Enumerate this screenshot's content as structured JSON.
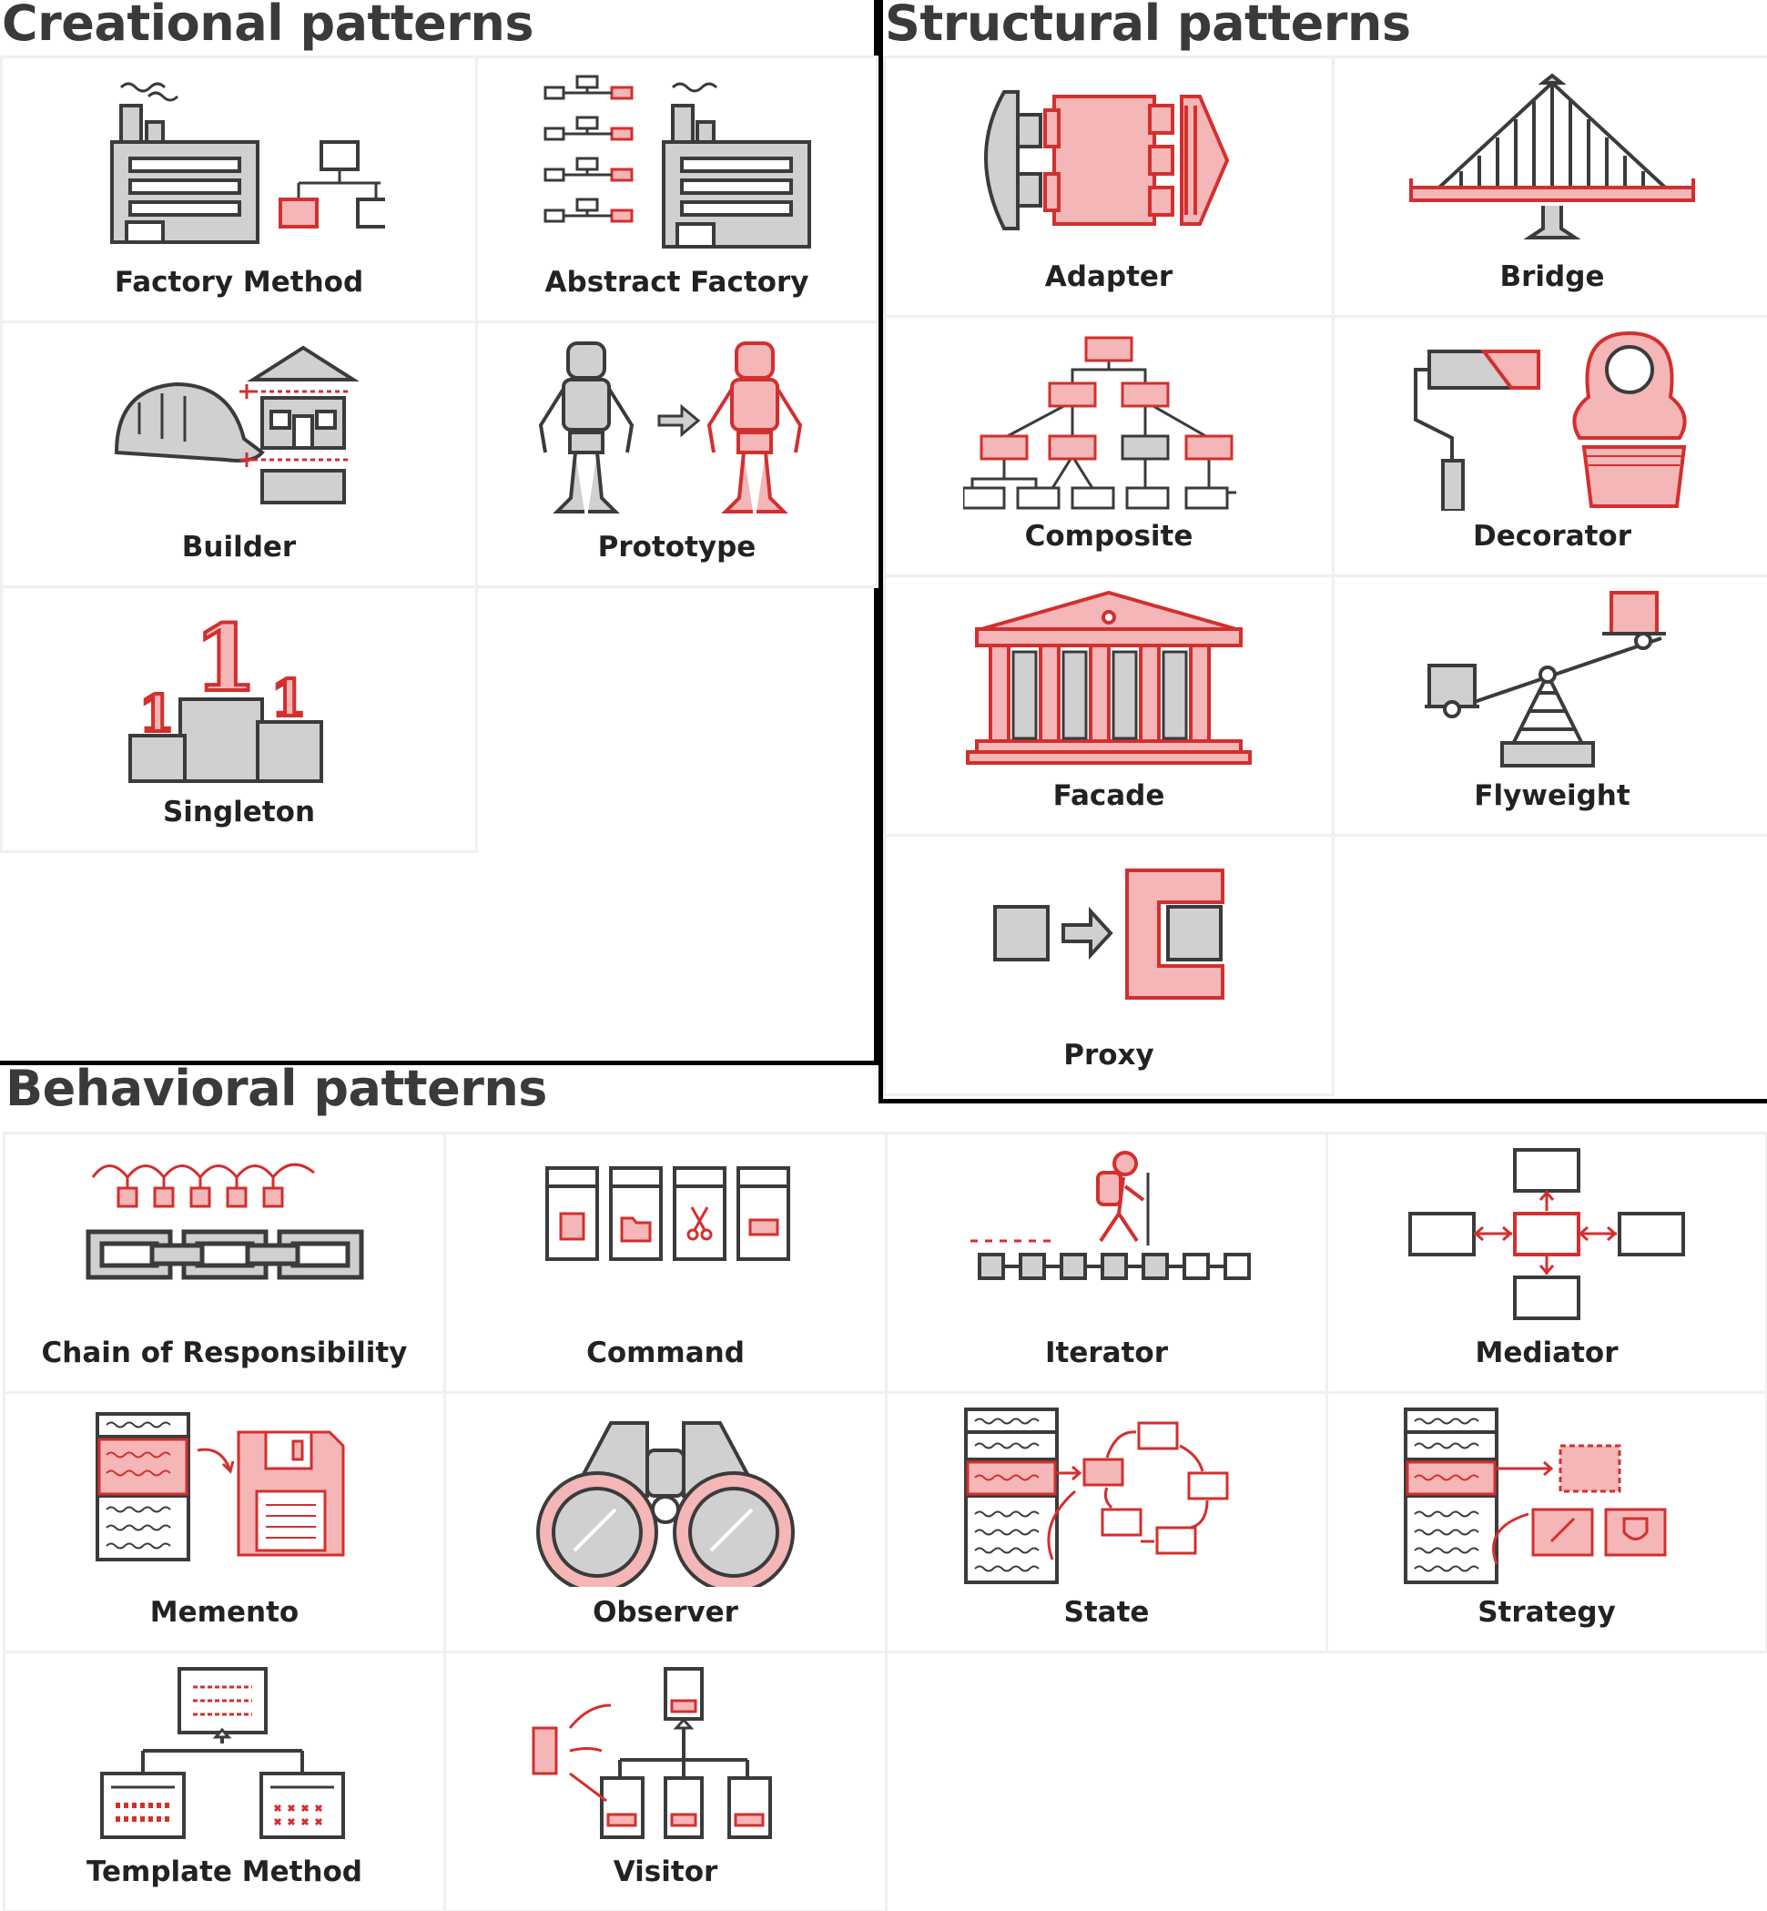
{
  "colors": {
    "accent": "#d32f2f",
    "accent_light": "#f4b6b6",
    "gray_fill": "#cfd0cf",
    "stroke": "#3b3b3b",
    "title": "#3a3a3a"
  },
  "sections": {
    "creational": {
      "title": "Creational patterns",
      "items": [
        {
          "label": "Factory Method",
          "icon": "factory-icon"
        },
        {
          "label": "Abstract Factory",
          "icon": "abstract-factory-icon"
        },
        {
          "label": "Builder",
          "icon": "builder-icon"
        },
        {
          "label": "Prototype",
          "icon": "robot-icon"
        },
        {
          "label": "Singleton",
          "icon": "podium-icon"
        }
      ]
    },
    "structural": {
      "title": "Structural patterns",
      "items": [
        {
          "label": "Adapter",
          "icon": "adapter-icon"
        },
        {
          "label": "Bridge",
          "icon": "bridge-icon"
        },
        {
          "label": "Composite",
          "icon": "tree-icon"
        },
        {
          "label": "Decorator",
          "icon": "decorator-icon"
        },
        {
          "label": "Facade",
          "icon": "temple-icon"
        },
        {
          "label": "Flyweight",
          "icon": "seesaw-icon"
        },
        {
          "label": "Proxy",
          "icon": "proxy-icon"
        }
      ]
    },
    "behavioral": {
      "title": "Behavioral patterns",
      "items": [
        {
          "label": "Chain of Responsibility",
          "icon": "chain-icon"
        },
        {
          "label": "Command",
          "icon": "command-icon"
        },
        {
          "label": "Iterator",
          "icon": "hiker-icon"
        },
        {
          "label": "Mediator",
          "icon": "mediator-icon"
        },
        {
          "label": "Memento",
          "icon": "floppy-icon"
        },
        {
          "label": "Observer",
          "icon": "binoculars-icon"
        },
        {
          "label": "State",
          "icon": "state-icon"
        },
        {
          "label": "Strategy",
          "icon": "strategy-icon"
        },
        {
          "label": "Template Method",
          "icon": "template-icon"
        },
        {
          "label": "Visitor",
          "icon": "visitor-icon"
        }
      ]
    }
  }
}
